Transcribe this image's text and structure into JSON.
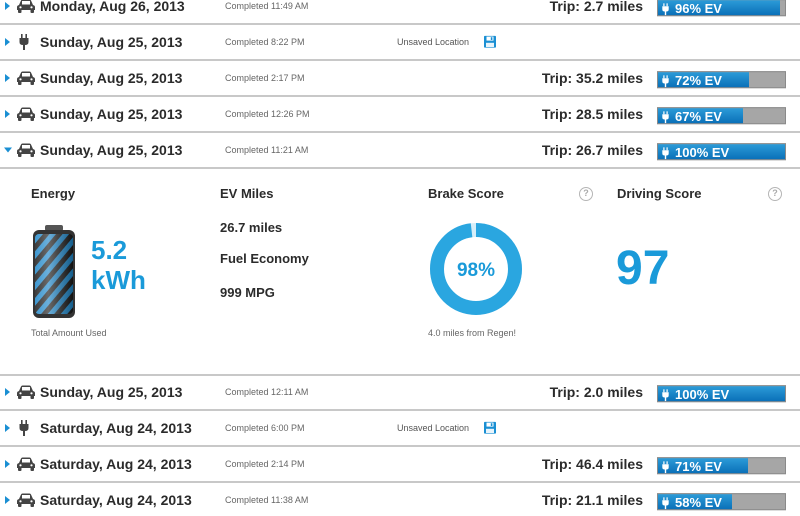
{
  "ev_label": "EV",
  "rows": [
    {
      "type": "car",
      "date": "Monday, Aug 26, 2013",
      "completed": "Completed 11:49 AM",
      "trip": "Trip: 2.7 miles",
      "ev_percent": 96,
      "ev_text": "96% EV"
    },
    {
      "type": "plug",
      "date": "Sunday, Aug 25, 2013",
      "completed": "Completed 8:22 PM",
      "location": "Unsaved Location"
    },
    {
      "type": "car",
      "date": "Sunday, Aug 25, 2013",
      "completed": "Completed 2:17 PM",
      "trip": "Trip: 35.2 miles",
      "ev_percent": 72,
      "ev_text": "72% EV"
    },
    {
      "type": "car",
      "date": "Sunday, Aug 25, 2013",
      "completed": "Completed 12:26 PM",
      "trip": "Trip: 28.5 miles",
      "ev_percent": 67,
      "ev_text": "67% EV"
    },
    {
      "type": "car",
      "date": "Sunday, Aug 25, 2013",
      "completed": "Completed 11:21 AM",
      "trip": "Trip: 26.7 miles",
      "ev_percent": 100,
      "ev_text": "100% EV"
    },
    {
      "type": "car",
      "date": "Sunday, Aug 25, 2013",
      "completed": "Completed 12:11 AM",
      "trip": "Trip: 2.0 miles",
      "ev_percent": 100,
      "ev_text": "100% EV"
    },
    {
      "type": "plug",
      "date": "Saturday, Aug 24, 2013",
      "completed": "Completed 6:00 PM",
      "location": "Unsaved Location"
    },
    {
      "type": "car",
      "date": "Saturday, Aug 24, 2013",
      "completed": "Completed 2:14 PM",
      "trip": "Trip: 46.4 miles",
      "ev_percent": 71,
      "ev_text": "71% EV"
    },
    {
      "type": "car",
      "date": "Saturday, Aug 24, 2013",
      "completed": "Completed 11:38 AM",
      "trip": "Trip: 21.1 miles",
      "ev_percent": 58,
      "ev_text": "58% EV"
    }
  ],
  "detail": {
    "energy_title": "Energy",
    "energy_value": "5.2",
    "energy_unit": "kWh",
    "energy_caption": "Total Amount Used",
    "ev_miles_title": "EV Miles",
    "ev_miles_value": "26.7 miles",
    "fuel_economy_title": "Fuel Economy",
    "fuel_economy_value": "999 MPG",
    "brake_title": "Brake Score",
    "brake_value": "98%",
    "brake_fraction": 0.98,
    "brake_caption": "4.0 miles from Regen!",
    "driving_title": "Driving Score",
    "driving_value": "97",
    "help_glyph": "?"
  },
  "colors": {
    "accent": "#1a9ad9",
    "ev_fill": "#0a70b8",
    "ev_empty": "#a6a6a6"
  }
}
